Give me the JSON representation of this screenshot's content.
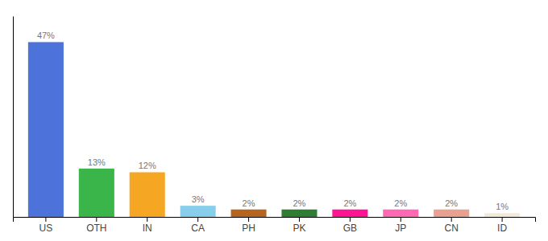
{
  "chart_data": {
    "type": "bar",
    "categories": [
      "US",
      "OTH",
      "IN",
      "CA",
      "PH",
      "PK",
      "GB",
      "JP",
      "CN",
      "ID"
    ],
    "values": [
      47,
      13,
      12,
      3,
      2,
      2,
      2,
      2,
      2,
      1
    ],
    "value_labels": [
      "47%",
      "13%",
      "12%",
      "3%",
      "2%",
      "2%",
      "2%",
      "2%",
      "2%",
      "1%"
    ],
    "colors": [
      "#4d72d9",
      "#3ab54a",
      "#f5a623",
      "#87ceeb",
      "#b5651d",
      "#2e7d32",
      "#ff1493",
      "#ff69b4",
      "#e8a090",
      "#f0ead6"
    ],
    "ylim": [
      0,
      54
    ],
    "data_labels": true,
    "tick_labels": "x",
    "grid": false
  }
}
